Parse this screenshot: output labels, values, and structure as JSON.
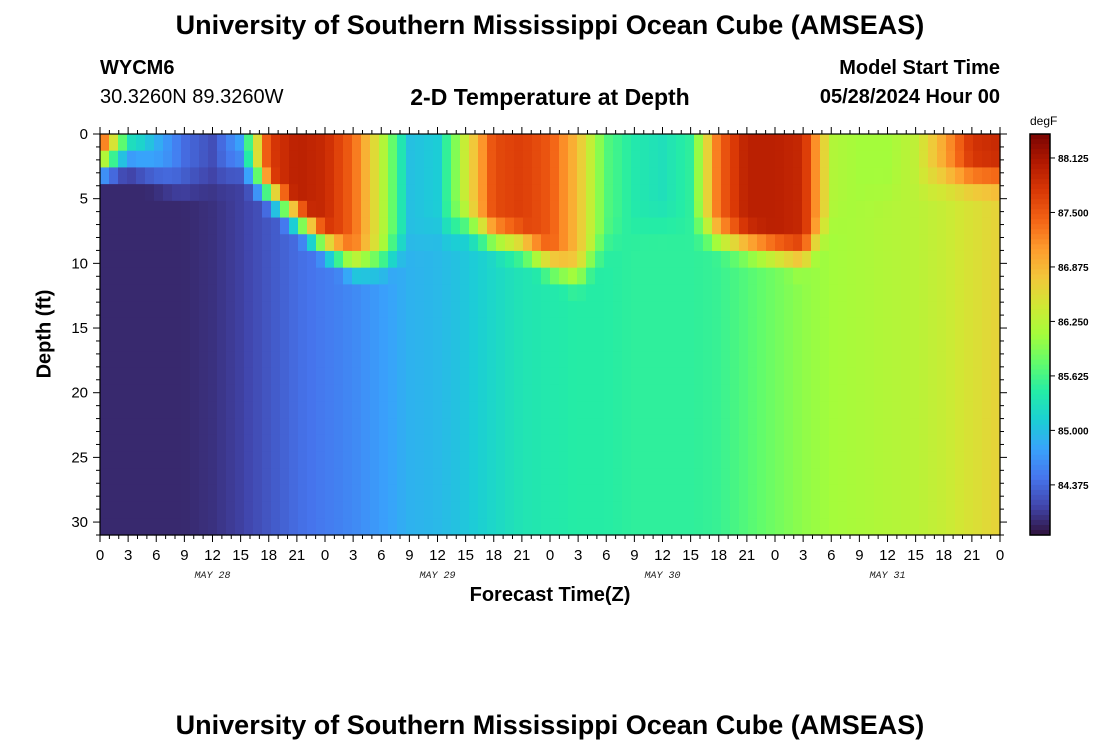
{
  "header": {
    "title": "University of Southern Mississippi Ocean Cube (AMSEAS)",
    "station": "WYCM6",
    "coords": "30.3260N  89.3260W",
    "subtitle": "2-D Temperature at Depth",
    "model_start_label": "Model Start Time",
    "model_start_value": "05/28/2024 Hour 00"
  },
  "footer": {
    "title": "University of Southern Mississippi Ocean Cube (AMSEAS)"
  },
  "chart_data": {
    "type": "heatmap",
    "xlabel": "Forecast Time(Z)",
    "ylabel": "Depth (ft)",
    "colorbar_unit": "degF",
    "x_tick_labels": [
      "0",
      "3",
      "6",
      "9",
      "12",
      "15",
      "18",
      "21",
      "0",
      "3",
      "6",
      "9",
      "12",
      "15",
      "18",
      "21",
      "0",
      "3",
      "6",
      "9",
      "12",
      "15",
      "18",
      "21",
      "0",
      "3",
      "6",
      "9",
      "12",
      "15",
      "18",
      "21",
      "0"
    ],
    "day_labels": [
      "MAY 28",
      "MAY 29",
      "MAY 30",
      "MAY 31"
    ],
    "x_range_hours": [
      0,
      96
    ],
    "y_ticks": [
      0,
      5,
      10,
      15,
      20,
      25,
      30
    ],
    "y_range_ft": [
      0,
      31
    ],
    "y_inverted": true,
    "color_range": [
      83.8,
      88.4
    ],
    "colorbar_ticks": [
      "84.375",
      "85.000",
      "85.625",
      "86.250",
      "86.875",
      "87.500",
      "88.125"
    ],
    "colorbar_tick_values": [
      84.375,
      85.0,
      85.625,
      86.25,
      86.875,
      87.5,
      88.125
    ],
    "colormap": [
      "#30123b",
      "#4145ab",
      "#4675ed",
      "#39a2fc",
      "#1bcfd4",
      "#24eca6",
      "#61fc6c",
      "#a4fc3b",
      "#d1e834",
      "#f3c63a",
      "#fe9b2d",
      "#f36315",
      "#d93806",
      "#b11901",
      "#7a0402"
    ],
    "depth_profile_hours": [
      0,
      3,
      6,
      9,
      12,
      15,
      18,
      21,
      24,
      27,
      30,
      33,
      36,
      39,
      42,
      45,
      48,
      51,
      54,
      57,
      60,
      63,
      66,
      69,
      72,
      75,
      78,
      81,
      84,
      87,
      90,
      93,
      96
    ],
    "bottom_temperature": [
      83.95,
      83.95,
      83.95,
      83.95,
      84.0,
      84.1,
      84.25,
      84.4,
      84.5,
      84.6,
      84.75,
      84.9,
      84.95,
      85.05,
      85.2,
      85.35,
      85.4,
      85.45,
      85.45,
      85.5,
      85.5,
      85.5,
      85.55,
      85.7,
      85.85,
      86.0,
      86.1,
      86.15,
      86.2,
      86.25,
      86.35,
      86.5,
      86.65
    ],
    "surface_temperature": [
      87.6,
      85.4,
      84.9,
      84.4,
      84.2,
      84.8,
      87.7,
      88.0,
      87.9,
      87.4,
      86.3,
      85.0,
      85.1,
      86.4,
      87.6,
      87.7,
      87.5,
      86.8,
      85.7,
      85.4,
      85.3,
      85.5,
      87.4,
      88.0,
      88.0,
      87.9,
      86.2,
      86.1,
      86.1,
      86.3,
      87.0,
      87.8,
      87.9
    ],
    "mixed_layer_depth_ft": [
      2.0,
      1.5,
      2.5,
      3.5,
      3.0,
      2.0,
      4.0,
      6.0,
      8.0,
      9.5,
      9.5,
      8.0,
      7.0,
      6.5,
      7.5,
      8.0,
      9.5,
      10.5,
      8.0,
      6.5,
      6.0,
      6.5,
      7.5,
      8.0,
      8.5,
      9.0,
      6.5,
      4.5,
      4.0,
      3.5,
      3.0,
      3.0,
      3.0
    ]
  }
}
